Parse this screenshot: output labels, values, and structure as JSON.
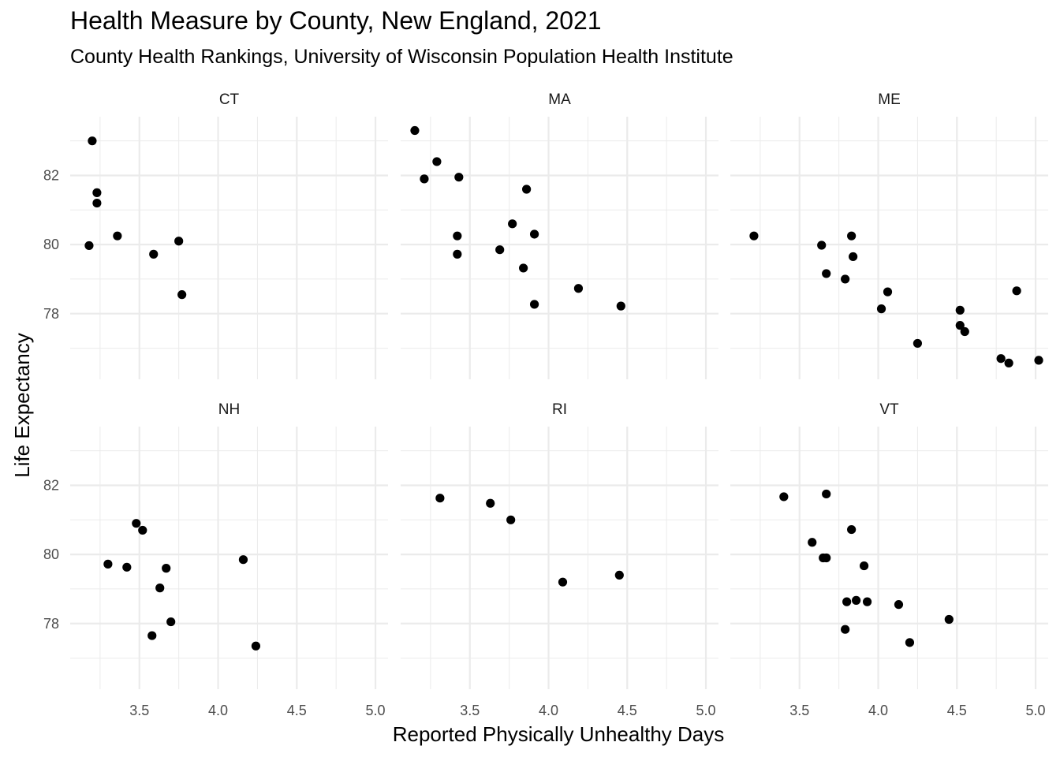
{
  "title": "Health Measure by County, New England, 2021",
  "subtitle": "County Health Rankings, University of Wisconsin Population Health Institute",
  "chart_data": {
    "type": "scatter",
    "title": "Health Measure by County, New England, 2021",
    "subtitle": "County Health Rankings, University of Wisconsin Population Health Institute",
    "xlabel": "Reported Physically Unhealthy Days",
    "ylabel": "Life Expectancy",
    "xlim": [
      3.06,
      5.08
    ],
    "ylim": [
      76.1,
      83.7
    ],
    "x_ticks": [
      3.5,
      4.0,
      4.5,
      5.0
    ],
    "x_tick_labels": [
      "3.5",
      "4.0",
      "4.5",
      "5.0"
    ],
    "x_minor_ticks": [
      3.25,
      3.75,
      4.25,
      4.75
    ],
    "y_ticks": [
      78,
      80,
      82
    ],
    "y_tick_labels": [
      "78",
      "80",
      "82"
    ],
    "y_minor_ticks": [
      77,
      79,
      81,
      83
    ],
    "grid": true,
    "point_color": "#000000",
    "grid_color": "#ebebeb",
    "panels": [
      {
        "label": "CT",
        "points": [
          {
            "x": 3.2,
            "y": 83.0
          },
          {
            "x": 3.23,
            "y": 81.5
          },
          {
            "x": 3.23,
            "y": 81.2
          },
          {
            "x": 3.36,
            "y": 80.25
          },
          {
            "x": 3.18,
            "y": 79.97
          },
          {
            "x": 3.59,
            "y": 79.72
          },
          {
            "x": 3.75,
            "y": 80.1
          },
          {
            "x": 3.77,
            "y": 78.55
          }
        ]
      },
      {
        "label": "MA",
        "points": [
          {
            "x": 3.15,
            "y": 83.3
          },
          {
            "x": 3.29,
            "y": 82.4
          },
          {
            "x": 3.21,
            "y": 81.9
          },
          {
            "x": 3.43,
            "y": 81.95
          },
          {
            "x": 3.86,
            "y": 81.6
          },
          {
            "x": 3.77,
            "y": 80.6
          },
          {
            "x": 3.42,
            "y": 80.25
          },
          {
            "x": 3.91,
            "y": 80.3
          },
          {
            "x": 3.69,
            "y": 79.85
          },
          {
            "x": 3.42,
            "y": 79.72
          },
          {
            "x": 3.84,
            "y": 79.32
          },
          {
            "x": 4.19,
            "y": 78.73
          },
          {
            "x": 3.91,
            "y": 78.27
          },
          {
            "x": 4.46,
            "y": 78.22
          }
        ]
      },
      {
        "label": "ME",
        "points": [
          {
            "x": 3.21,
            "y": 80.25
          },
          {
            "x": 3.64,
            "y": 79.98
          },
          {
            "x": 3.83,
            "y": 80.25
          },
          {
            "x": 3.84,
            "y": 79.65
          },
          {
            "x": 3.67,
            "y": 79.16
          },
          {
            "x": 3.79,
            "y": 79.0
          },
          {
            "x": 4.06,
            "y": 78.63
          },
          {
            "x": 4.02,
            "y": 78.14
          },
          {
            "x": 4.52,
            "y": 78.1
          },
          {
            "x": 4.52,
            "y": 77.66
          },
          {
            "x": 4.55,
            "y": 77.48
          },
          {
            "x": 4.88,
            "y": 78.66
          },
          {
            "x": 4.25,
            "y": 77.14
          },
          {
            "x": 4.78,
            "y": 76.7
          },
          {
            "x": 4.83,
            "y": 76.57
          },
          {
            "x": 5.02,
            "y": 76.65
          }
        ]
      },
      {
        "label": "NH",
        "points": [
          {
            "x": 3.48,
            "y": 80.9
          },
          {
            "x": 3.52,
            "y": 80.7
          },
          {
            "x": 3.3,
            "y": 79.72
          },
          {
            "x": 3.42,
            "y": 79.63
          },
          {
            "x": 3.67,
            "y": 79.6
          },
          {
            "x": 3.63,
            "y": 79.03
          },
          {
            "x": 4.16,
            "y": 79.85
          },
          {
            "x": 3.7,
            "y": 78.05
          },
          {
            "x": 3.58,
            "y": 77.65
          },
          {
            "x": 4.24,
            "y": 77.35
          }
        ]
      },
      {
        "label": "RI",
        "points": [
          {
            "x": 3.31,
            "y": 81.63
          },
          {
            "x": 3.63,
            "y": 81.48
          },
          {
            "x": 3.76,
            "y": 81.0
          },
          {
            "x": 4.09,
            "y": 79.2
          },
          {
            "x": 4.45,
            "y": 79.4
          }
        ]
      },
      {
        "label": "VT",
        "points": [
          {
            "x": 3.4,
            "y": 81.67
          },
          {
            "x": 3.67,
            "y": 81.75
          },
          {
            "x": 3.83,
            "y": 80.72
          },
          {
            "x": 3.58,
            "y": 80.35
          },
          {
            "x": 3.65,
            "y": 79.9
          },
          {
            "x": 3.67,
            "y": 79.9
          },
          {
            "x": 3.91,
            "y": 79.67
          },
          {
            "x": 3.8,
            "y": 78.63
          },
          {
            "x": 3.86,
            "y": 78.67
          },
          {
            "x": 3.93,
            "y": 78.63
          },
          {
            "x": 4.13,
            "y": 78.55
          },
          {
            "x": 4.45,
            "y": 78.12
          },
          {
            "x": 3.79,
            "y": 77.83
          },
          {
            "x": 4.2,
            "y": 77.45
          }
        ]
      }
    ]
  }
}
